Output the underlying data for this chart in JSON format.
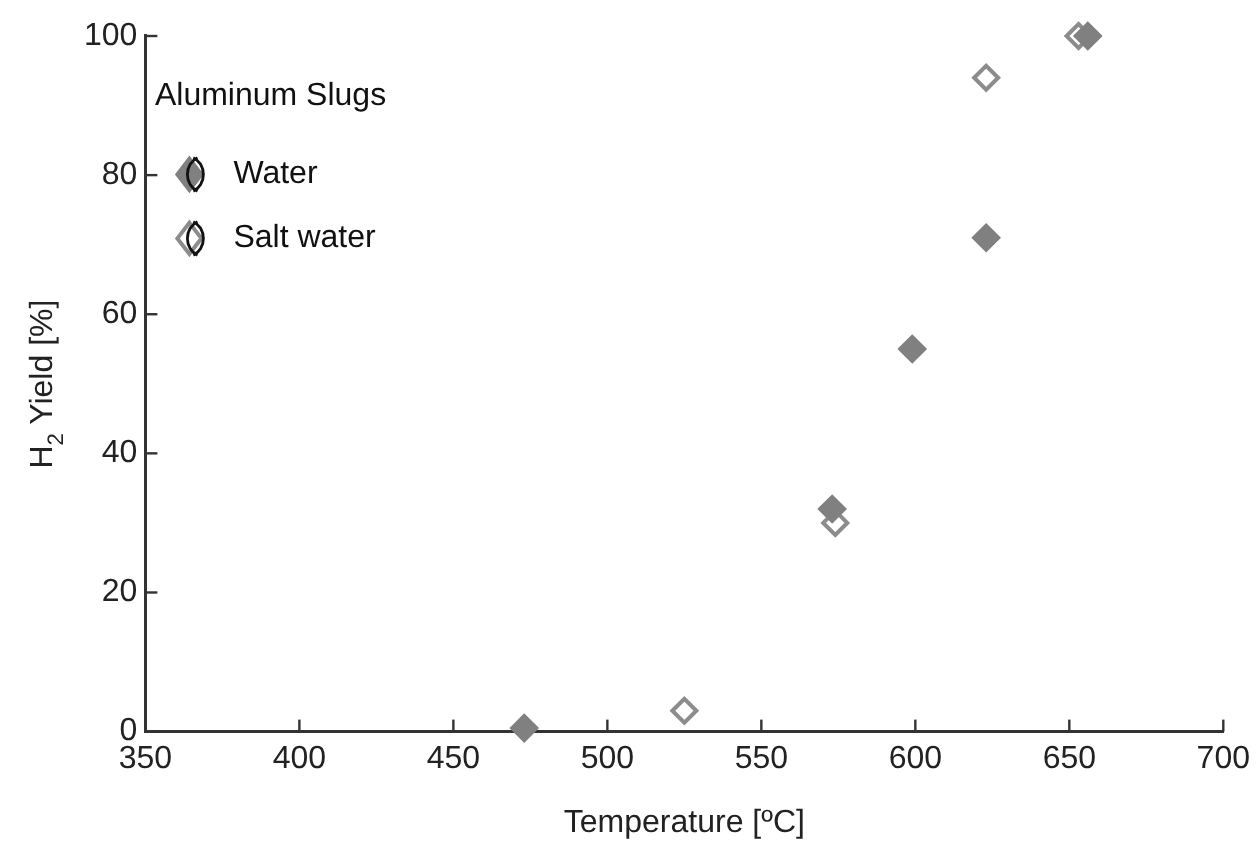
{
  "chart_data": {
    "type": "scatter",
    "xlabel": "Temperature [ºC]",
    "ylabel": "H$_{2}$ Yield [%]",
    "legend_title": "Aluminum Slugs",
    "legend": "top left",
    "marker": "diamond",
    "grid": false,
    "xlim": [
      350,
      700
    ],
    "xticks": [
      350,
      400,
      450,
      500,
      550,
      600,
      650,
      700
    ],
    "ylim": [
      0,
      100
    ],
    "yticks": [
      0,
      20,
      40,
      60,
      80,
      100
    ],
    "series": [
      {
        "name": "Water",
        "color": "#808080",
        "x": [
          473,
          573,
          599,
          623,
          656
        ],
        "values": [
          0.5,
          32,
          55,
          71,
          100
        ]
      },
      {
        "name": "Salt water",
        "color": "#8c8c8c",
        "x": [
          525,
          574,
          623,
          653
        ],
        "values": [
          3,
          30,
          94,
          100
        ]
      }
    ]
  }
}
